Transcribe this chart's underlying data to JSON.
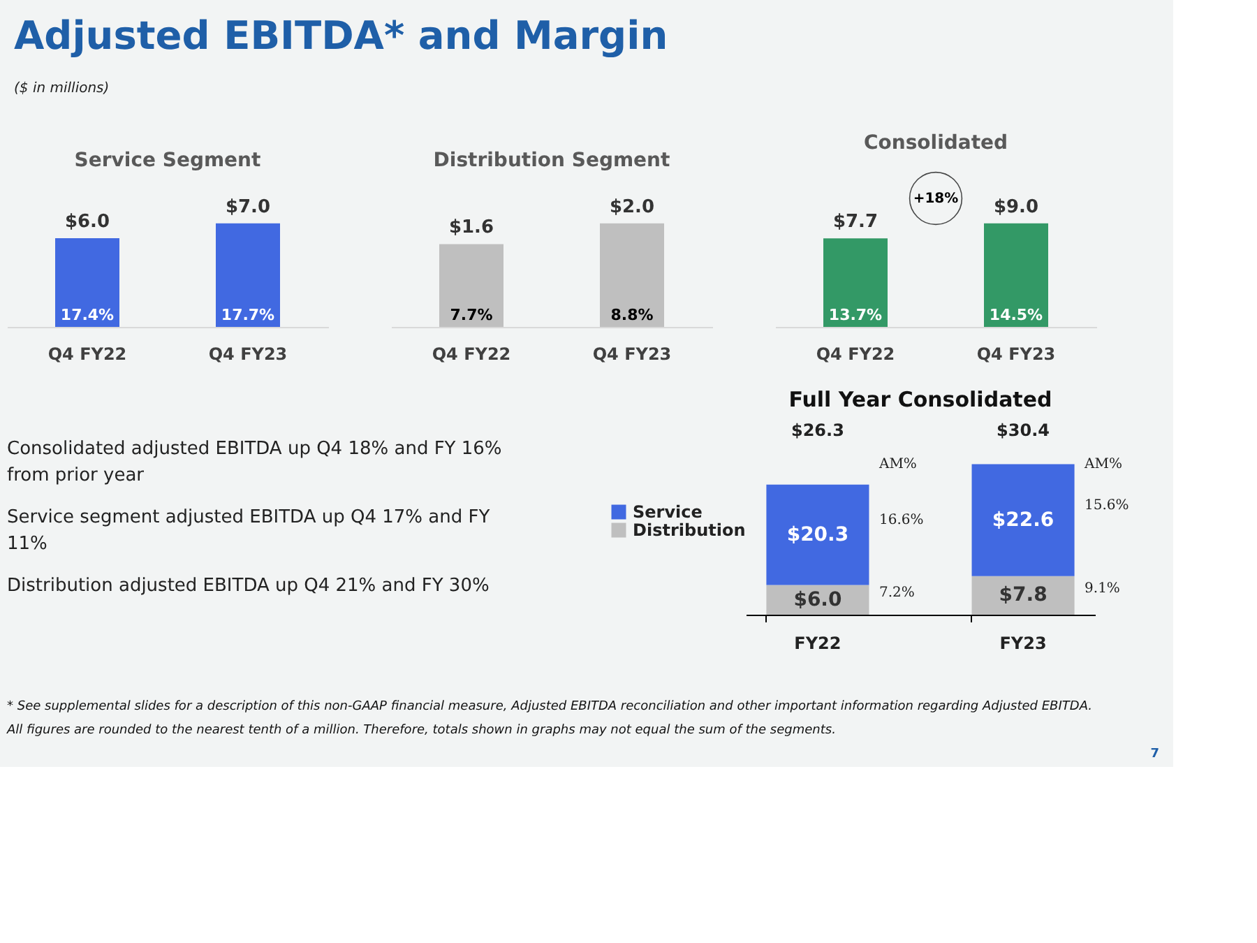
{
  "chart_data": [
    {
      "type": "other",
      "title": "Adjusted EBITDA* and Margin",
      "subtitle": "($ in millions)"
    },
    {
      "type": "bar",
      "title": "Service Segment",
      "categories": [
        "Q4 FY22",
        "Q4 FY23"
      ],
      "values": [
        6.0,
        7.0
      ],
      "color": "#4169e1",
      "value_labels": [
        "$6.0",
        "$7.0"
      ],
      "annotations": [
        "17.4%",
        "17.7%"
      ]
    },
    {
      "type": "bar",
      "title": "Distribution Segment",
      "categories": [
        "Q4 FY22",
        "Q4 FY23"
      ],
      "values": [
        1.6,
        2.0
      ],
      "color": "#bfbfbf",
      "value_labels": [
        "$1.6",
        "$2.0"
      ],
      "annotations": [
        "7.7%",
        "8.8%"
      ]
    },
    {
      "type": "bar",
      "title": "Consolidated",
      "categories": [
        "Q4 FY22",
        "Q4 FY23"
      ],
      "values": [
        7.7,
        9.0
      ],
      "color": "#339966",
      "value_labels": [
        "$7.7",
        "$9.0"
      ],
      "annotations": [
        "13.7%",
        "14.5%",
        "+18%"
      ]
    },
    {
      "type": "other",
      "annotations": [
        "Consolidated adjusted EBITDA up Q4 18% and FY 16% from prior year",
        "Service segment adjusted EBITDA up Q4 17% and FY 11%",
        "Distribution adjusted EBITDA up Q4 21% and FY 30%"
      ]
    },
    {
      "type": "bar",
      "title": "Full Year Consolidated",
      "stacked": true,
      "legend": "left",
      "categories": [
        "FY22",
        "FY23"
      ],
      "series": [
        {
          "name": "Distribution",
          "color": "#bfbfbf",
          "values": [
            6.0,
            7.8
          ],
          "value_labels": [
            "$6.0",
            "$7.8"
          ]
        },
        {
          "name": "Service",
          "color": "#4169e1",
          "values": [
            20.3,
            22.6
          ],
          "value_labels": [
            "$20.3",
            "$22.6"
          ]
        }
      ],
      "totals": [
        "$26.3",
        "$30.4"
      ],
      "annotations": [
        "AM%",
        "16.6%",
        "7.2%",
        "AM%",
        "15.6%",
        "9.1%"
      ]
    },
    {
      "type": "other",
      "annotations": [
        "* See supplemental slides for a description of this non-GAAP financial measure, Adjusted EBITDA reconciliation and other important information regarding Adjusted EBITDA.",
        "All figures are rounded to the nearest tenth of a million. Therefore, totals shown in graphs may not equal the sum of the segments.",
        "7"
      ]
    }
  ]
}
